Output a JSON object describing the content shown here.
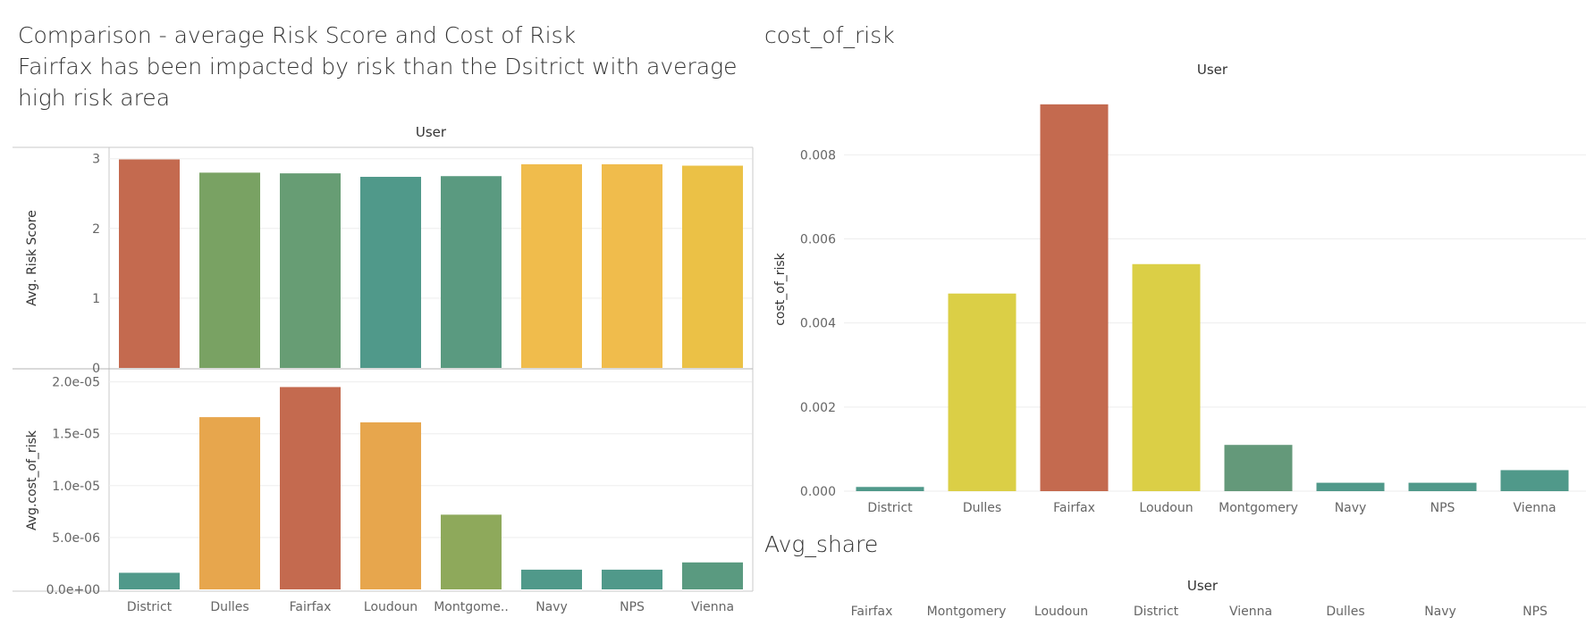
{
  "titles": {
    "left_line1": "Comparison -  average Risk Score and Cost of Risk",
    "left_line2": "Fairfax has been impacted by risk than the Dsitrict with average high risk area",
    "cost_of_risk": "cost_of_risk",
    "avg_share": "Avg_share"
  },
  "colors": {
    "red": "#c46a4f",
    "green1": "#79a263",
    "green2": "#679d74",
    "teal": "#50998a",
    "teal2": "#5a9a80",
    "gold": "#f0bc4c",
    "gold2": "#ebc146",
    "orange": "#e7a64d",
    "olive": "#8ea95b",
    "yellow": "#dbcf46",
    "green3": "#64997a"
  },
  "chart_data": [
    {
      "type": "bar",
      "header": "User",
      "ylabel": "Avg. Risk Score",
      "categories": [
        "District",
        "Dulles",
        "Fairfax",
        "Loudoun",
        "Montgomery",
        "Navy",
        "NPS",
        "Vienna"
      ],
      "values": [
        2.99,
        2.8,
        2.79,
        2.74,
        2.75,
        2.92,
        2.92,
        2.9
      ],
      "colors": [
        "#c46a4f",
        "#79a263",
        "#679d74",
        "#50998a",
        "#5a9a80",
        "#f0bc4c",
        "#f0bc4c",
        "#ebc146"
      ],
      "ylim": [
        0,
        3.15
      ],
      "yticks": [
        {
          "v": 0,
          "label": "0"
        },
        {
          "v": 1,
          "label": "1"
        },
        {
          "v": 2,
          "label": "2"
        },
        {
          "v": 3,
          "label": "3"
        }
      ],
      "grid": true
    },
    {
      "type": "bar",
      "ylabel": "Avg.cost_of_risk",
      "categories": [
        "District",
        "Dulles",
        "Fairfax",
        "Loudoun",
        "Montgome..",
        "Navy",
        "NPS",
        "Vienna"
      ],
      "values": [
        1.6e-06,
        1.66e-05,
        1.95e-05,
        1.61e-05,
        7.2e-06,
        1.9e-06,
        1.9e-06,
        2.6e-06
      ],
      "colors": [
        "#50998a",
        "#e7a64d",
        "#c46a4f",
        "#e7a64d",
        "#8ea95b",
        "#50998a",
        "#50998a",
        "#5a9a80"
      ],
      "ylim": [
        0,
        2.1e-05
      ],
      "yticks": [
        {
          "v": 0,
          "label": "0.0e+00"
        },
        {
          "v": 5e-06,
          "label": "5.0e-06"
        },
        {
          "v": 1e-05,
          "label": "1.0e-05"
        },
        {
          "v": 1.5e-05,
          "label": "1.5e-05"
        },
        {
          "v": 2e-05,
          "label": "2.0e-05"
        }
      ],
      "grid": true
    },
    {
      "type": "bar",
      "title": "cost_of_risk",
      "header": "User",
      "ylabel": "cost_of_risk",
      "categories": [
        "District",
        "Dulles",
        "Fairfax",
        "Loudoun",
        "Montgomery",
        "Navy",
        "NPS",
        "Vienna"
      ],
      "values": [
        0.0001,
        0.0047,
        0.0092,
        0.0054,
        0.0011,
        0.0002,
        0.0002,
        0.0005
      ],
      "colors": [
        "#50998a",
        "#dbcf46",
        "#c46a4f",
        "#dbcf46",
        "#64997a",
        "#50998a",
        "#50998a",
        "#50998a"
      ],
      "ylim": [
        0,
        0.0096
      ],
      "yticks": [
        {
          "v": 0,
          "label": "0.000"
        },
        {
          "v": 0.002,
          "label": "0.002"
        },
        {
          "v": 0.004,
          "label": "0.004"
        },
        {
          "v": 0.006,
          "label": "0.006"
        },
        {
          "v": 0.008,
          "label": "0.008"
        }
      ],
      "grid": true
    },
    {
      "type": "table",
      "title": "Avg_share",
      "header": "User",
      "categories": [
        "Fairfax",
        "Montgomery",
        "Loudoun",
        "District",
        "Vienna",
        "Dulles",
        "Navy",
        "NPS"
      ]
    }
  ]
}
